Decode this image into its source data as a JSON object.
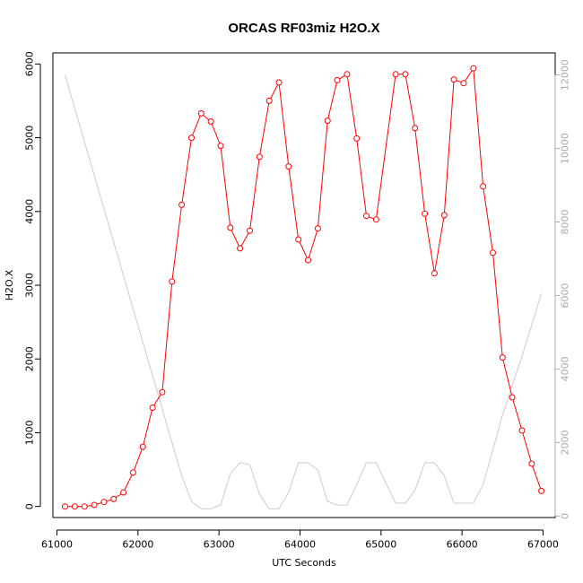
{
  "chart_data": {
    "type": "line",
    "title": "ORCAS RF03miz H2O.X",
    "xlabel": "UTC Seconds",
    "ylabel": "H2O.X",
    "xlim": [
      60950,
      67150
    ],
    "ylim": [
      -150,
      6150
    ],
    "y2lim": [
      -40,
      12600
    ],
    "x_ticks": [
      61000,
      62000,
      63000,
      64000,
      65000,
      66000,
      67000
    ],
    "y_ticks": [
      0,
      1000,
      2000,
      3000,
      4000,
      5000,
      6000
    ],
    "y2_ticks": [
      0,
      2000,
      4000,
      6000,
      8000,
      10000,
      12000
    ],
    "grid": false,
    "legend": "none",
    "series": [
      {
        "color": "#ff0000",
        "marker": "open-circle",
        "axis": "left",
        "x": [
          61100,
          61220,
          61340,
          61460,
          61580,
          61700,
          61820,
          61940,
          62060,
          62180,
          62300,
          62420,
          62540,
          62660,
          62780,
          62900,
          63020,
          63140,
          63260,
          63380,
          63500,
          63620,
          63740,
          63860,
          63980,
          64100,
          64220,
          64340,
          64460,
          64580,
          64700,
          64820,
          64940,
          65180,
          65300,
          65420,
          65540,
          65660,
          65780,
          65900,
          66020,
          66140,
          66260,
          66380,
          66500,
          66620,
          66740,
          66860,
          66980
        ],
        "y": [
          0,
          0,
          0,
          20,
          60,
          100,
          190,
          460,
          810,
          1340,
          1550,
          3050,
          4090,
          5000,
          5330,
          5220,
          4890,
          3780,
          3500,
          3740,
          4740,
          5500,
          5750,
          4610,
          3620,
          3340,
          3770,
          5230,
          5780,
          5860,
          4990,
          3940,
          3890,
          5860,
          5860,
          5130,
          3970,
          3160,
          3950,
          5790,
          5740,
          5940,
          4340,
          3440,
          2020,
          1480,
          1030,
          580,
          210
        ]
      },
      {
        "color": "#cccccc",
        "marker": "none",
        "axis": "right",
        "x": [
          61100,
          62540,
          62660,
          62780,
          62900,
          63020,
          63140,
          63260,
          63380,
          63500,
          63620,
          63740,
          63860,
          63980,
          64100,
          64220,
          64340,
          64460,
          64580,
          64700,
          64820,
          64940,
          65060,
          65180,
          65300,
          65420,
          65540,
          65660,
          65780,
          65900,
          66020,
          66140,
          66260,
          66380,
          66500,
          66620,
          66740,
          66860,
          66980
        ],
        "y": [
          12000,
          1100,
          400,
          200,
          200,
          300,
          1150,
          1450,
          1400,
          600,
          200,
          200,
          650,
          1450,
          1450,
          1250,
          400,
          300,
          300,
          850,
          1450,
          1450,
          900,
          350,
          350,
          700,
          1450,
          1450,
          1100,
          350,
          350,
          350,
          850,
          1800,
          2750,
          3550,
          4350,
          5200,
          6050
        ]
      }
    ]
  }
}
